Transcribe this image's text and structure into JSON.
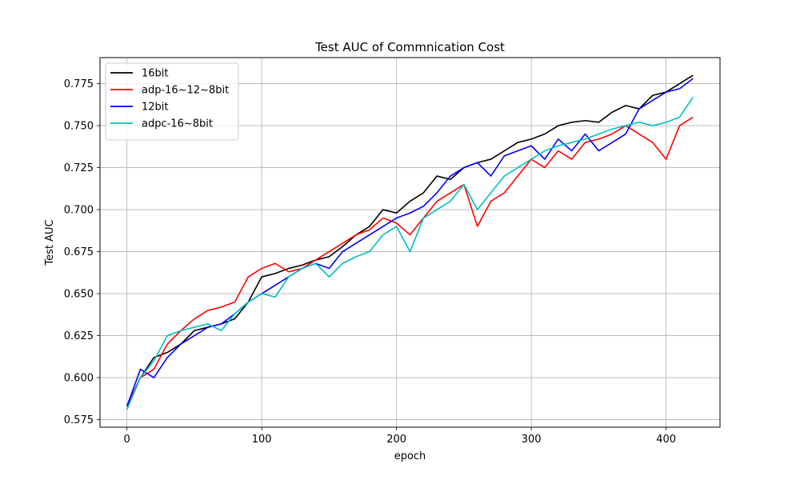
{
  "chart_data": {
    "type": "line",
    "title": "Test AUC of Commnication Cost",
    "xlabel": "epoch",
    "ylabel": "Test AUC",
    "xlim": [
      -20,
      440
    ],
    "ylim": [
      0.5705,
      0.7905
    ],
    "xticks": [
      0,
      100,
      200,
      300,
      400
    ],
    "xtick_labels": [
      "0",
      "100",
      "200",
      "300",
      "400"
    ],
    "yticks": [
      0.575,
      0.6,
      0.625,
      0.65,
      0.675,
      0.7,
      0.725,
      0.75,
      0.775
    ],
    "ytick_labels": [
      "0.575",
      "0.600",
      "0.625",
      "0.650",
      "0.675",
      "0.700",
      "0.725",
      "0.750",
      "0.775"
    ],
    "grid": true,
    "legend_position": "top-left",
    "series": [
      {
        "name": "16bit",
        "color": "#000000",
        "x": [
          0,
          10,
          20,
          30,
          40,
          50,
          60,
          70,
          80,
          90,
          100,
          110,
          120,
          130,
          140,
          150,
          160,
          170,
          180,
          190,
          200,
          210,
          220,
          230,
          240,
          250,
          260,
          270,
          280,
          290,
          300,
          310,
          320,
          330,
          340,
          350,
          360,
          370,
          380,
          390,
          400,
          410,
          420
        ],
        "values": [
          0.583,
          0.6,
          0.612,
          0.615,
          0.62,
          0.628,
          0.63,
          0.632,
          0.635,
          0.645,
          0.66,
          0.662,
          0.665,
          0.667,
          0.67,
          0.672,
          0.678,
          0.685,
          0.69,
          0.7,
          0.698,
          0.705,
          0.71,
          0.72,
          0.718,
          0.725,
          0.728,
          0.73,
          0.735,
          0.74,
          0.742,
          0.745,
          0.75,
          0.752,
          0.753,
          0.752,
          0.758,
          0.762,
          0.76,
          0.768,
          0.77,
          0.775,
          0.78
        ]
      },
      {
        "name": "adp-16~12~8bit",
        "color": "#ff0000",
        "x": [
          0,
          10,
          20,
          30,
          40,
          50,
          60,
          70,
          80,
          90,
          100,
          110,
          120,
          130,
          140,
          150,
          160,
          170,
          180,
          190,
          200,
          210,
          220,
          230,
          240,
          250,
          260,
          270,
          280,
          290,
          300,
          310,
          320,
          330,
          340,
          350,
          360,
          370,
          380,
          390,
          400,
          410,
          420
        ],
        "values": [
          0.583,
          0.6,
          0.605,
          0.62,
          0.628,
          0.635,
          0.64,
          0.642,
          0.645,
          0.66,
          0.665,
          0.668,
          0.663,
          0.665,
          0.67,
          0.675,
          0.68,
          0.685,
          0.688,
          0.695,
          0.692,
          0.685,
          0.695,
          0.705,
          0.71,
          0.715,
          0.69,
          0.705,
          0.71,
          0.72,
          0.73,
          0.725,
          0.735,
          0.73,
          0.74,
          0.742,
          0.745,
          0.75,
          0.745,
          0.74,
          0.73,
          0.75,
          0.755
        ]
      },
      {
        "name": "12bit",
        "color": "#0000ff",
        "x": [
          0,
          10,
          20,
          30,
          40,
          50,
          60,
          70,
          80,
          90,
          100,
          110,
          120,
          130,
          140,
          150,
          160,
          170,
          180,
          190,
          200,
          210,
          220,
          230,
          240,
          250,
          260,
          270,
          280,
          290,
          300,
          310,
          320,
          330,
          340,
          350,
          360,
          370,
          380,
          390,
          400,
          410,
          420
        ],
        "values": [
          0.583,
          0.605,
          0.6,
          0.612,
          0.62,
          0.625,
          0.63,
          0.632,
          0.638,
          0.645,
          0.65,
          0.655,
          0.66,
          0.665,
          0.668,
          0.665,
          0.675,
          0.68,
          0.685,
          0.69,
          0.695,
          0.698,
          0.702,
          0.71,
          0.72,
          0.725,
          0.728,
          0.72,
          0.732,
          0.735,
          0.738,
          0.73,
          0.742,
          0.735,
          0.745,
          0.735,
          0.74,
          0.745,
          0.76,
          0.765,
          0.77,
          0.772,
          0.778
        ]
      },
      {
        "name": "adpc-16~8bit",
        "color": "#00bfbf",
        "x": [
          0,
          10,
          20,
          30,
          40,
          50,
          60,
          70,
          80,
          90,
          100,
          110,
          120,
          130,
          140,
          150,
          160,
          170,
          180,
          190,
          200,
          210,
          220,
          230,
          240,
          250,
          260,
          270,
          280,
          290,
          300,
          310,
          320,
          330,
          340,
          350,
          360,
          370,
          380,
          390,
          400,
          410,
          420
        ],
        "values": [
          0.581,
          0.6,
          0.61,
          0.625,
          0.628,
          0.63,
          0.632,
          0.628,
          0.638,
          0.645,
          0.65,
          0.648,
          0.66,
          0.665,
          0.668,
          0.66,
          0.668,
          0.672,
          0.675,
          0.685,
          0.69,
          0.675,
          0.695,
          0.7,
          0.705,
          0.715,
          0.7,
          0.71,
          0.72,
          0.725,
          0.73,
          0.735,
          0.738,
          0.74,
          0.742,
          0.745,
          0.748,
          0.75,
          0.752,
          0.75,
          0.752,
          0.755,
          0.767
        ]
      }
    ]
  }
}
